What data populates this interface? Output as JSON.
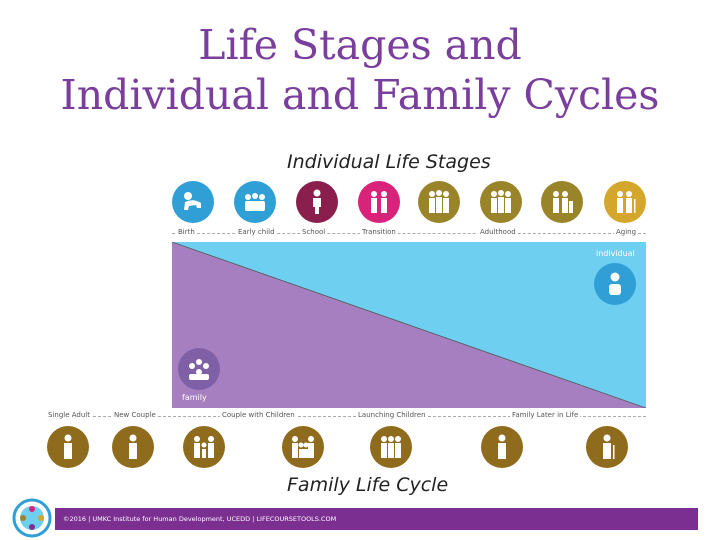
{
  "title": {
    "line1": "Life Stages and",
    "line2": "Individual and Family Cycles"
  },
  "individual_heading": "Individual Life Stages",
  "family_heading": "Family Life Cycle",
  "individual_stages": [
    {
      "label": "Birth",
      "color": "#2f9fd6"
    },
    {
      "label": "Early child",
      "color": "#2f9fd6"
    },
    {
      "label": "School",
      "color": "#8a1f4e"
    },
    {
      "label": "Transition",
      "color": "#d9237a"
    },
    {
      "label": "Adulthood",
      "color": "#9a8429"
    },
    {
      "label": "Aging",
      "color": "#d4a72c"
    }
  ],
  "individual_label": "individual",
  "family_label": "family",
  "family_stages": [
    {
      "label": "Single Adult"
    },
    {
      "label": "New Couple"
    },
    {
      "label": "Couple with Children"
    },
    {
      "label": "Launching Children"
    },
    {
      "label": "Family Later in Life"
    }
  ],
  "colors": {
    "title": "#7a3e9d",
    "individual_area": "#6ecff0",
    "family_area": "#a57fbf",
    "family_icon": "#8f6c1d",
    "footer": "#7b2f91"
  },
  "icons": {
    "individual": "person-icon",
    "family": "family-group-icon",
    "stage": "people-silhouette-icon"
  },
  "footer": "©2016 | UMKC Institute for Human Development, UCEDD | LIFECOURSETOOLS.COM"
}
